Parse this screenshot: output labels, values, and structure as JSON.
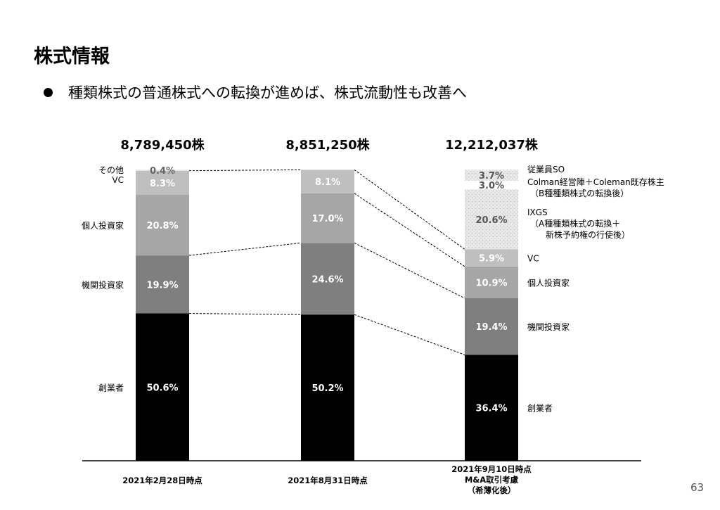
{
  "slide": {
    "title": "株式情報",
    "bullet": "種類株式の普通株式への転換が進めば、株式流動性も改善へ",
    "page_number": "63"
  },
  "chart_data": {
    "type": "bar",
    "stacked": true,
    "unit": "%",
    "ylim": [
      0,
      100
    ],
    "categories": [
      [
        "2021年2月28日時点"
      ],
      [
        "2021年8月31日時点"
      ],
      [
        "2021年9月10日時点",
        "M&A取引考慮",
        "（希薄化後）"
      ]
    ],
    "totals": [
      "8,789,450株",
      "8,851,250株",
      "12,212,037株"
    ],
    "series": [
      {
        "key": "founder",
        "values": [
          50.6,
          50.2,
          36.4
        ],
        "labels": [
          "50.6%",
          "50.2%",
          "36.4%"
        ],
        "color": "#000000",
        "text_color": "#ffffff",
        "fill": "solid"
      },
      {
        "key": "institutional",
        "values": [
          19.9,
          24.6,
          19.4
        ],
        "labels": [
          "19.9%",
          "24.6%",
          "19.4%"
        ],
        "color": "#7f7f7f",
        "text_color": "#ffffff",
        "fill": "solid"
      },
      {
        "key": "individual",
        "values": [
          20.8,
          17.0,
          10.9
        ],
        "labels": [
          "20.8%",
          "17.0%",
          "10.9%"
        ],
        "color": "#a6a6a6",
        "text_color": "#ffffff",
        "fill": "solid"
      },
      {
        "key": "vc",
        "values": [
          8.3,
          8.1,
          5.9
        ],
        "labels": [
          "8.3%",
          "8.1%",
          "5.9%"
        ],
        "color": "#bfbfbf",
        "text_color": "#ffffff",
        "fill": "solid"
      },
      {
        "key": "ixgs",
        "values": [
          0,
          0,
          20.6
        ],
        "labels": [
          "",
          "",
          "20.6%"
        ],
        "color": "#e7e7e7",
        "text_color": "#555555",
        "fill": "dots"
      },
      {
        "key": "colman",
        "values": [
          0,
          0,
          3.0
        ],
        "labels": [
          "",
          "",
          "3.0%"
        ],
        "color": "#ffffff",
        "text_color": "#555555",
        "fill": "solid"
      },
      {
        "key": "employee_so",
        "values": [
          0,
          0,
          3.7
        ],
        "labels": [
          "",
          "",
          "3.7%"
        ],
        "color": "#e2e2e2",
        "text_color": "#555555",
        "fill": "dots"
      },
      {
        "key": "other",
        "values": [
          0.4,
          0,
          0
        ],
        "labels": [
          "0.4%",
          "",
          ""
        ],
        "color": "#eeeeee",
        "text_color": "#666666",
        "fill": "solid"
      }
    ],
    "left_labels": [
      {
        "series": "other",
        "text": "その他"
      },
      {
        "series": "vc",
        "text": "VC"
      },
      {
        "series": "individual",
        "text": "個人投資家"
      },
      {
        "series": "institutional",
        "text": "機関投資家"
      },
      {
        "series": "founder",
        "text": "創業者"
      }
    ],
    "right_labels": [
      {
        "series": "employee_so",
        "lines": [
          "従業員SO"
        ]
      },
      {
        "series": "colman",
        "lines": [
          "Colman経営陣＋Coleman既存株主",
          "（B種種類株式の転換後）"
        ]
      },
      {
        "series": "ixgs",
        "lines": [
          "IXGS",
          "（A種種類株式の転換＋",
          "新株予約権の行使後）"
        ]
      },
      {
        "series": "vc",
        "lines": [
          "VC"
        ]
      },
      {
        "series": "individual",
        "lines": [
          "個人投資家"
        ]
      },
      {
        "series": "institutional",
        "lines": [
          "機関投資家"
        ]
      },
      {
        "series": "founder",
        "lines": [
          "創業者"
        ]
      }
    ],
    "connectors": [
      {
        "from": 0,
        "to": 1,
        "boundaries": [
          "founder",
          "institutional",
          "vc",
          "other"
        ]
      },
      {
        "from": 1,
        "to": 2,
        "boundaries": [
          "founder",
          "institutional",
          "individual",
          "vc"
        ]
      }
    ]
  }
}
